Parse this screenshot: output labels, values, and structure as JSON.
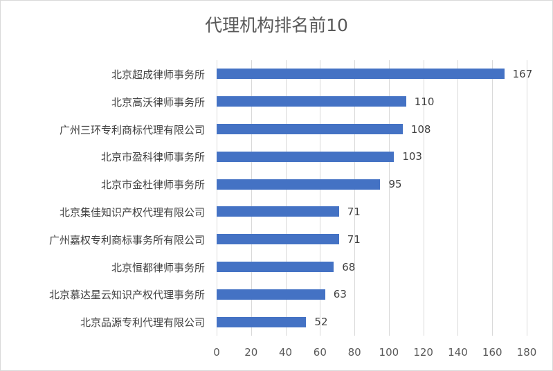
{
  "chart_data": {
    "type": "bar",
    "orientation": "horizontal",
    "title": "代理机构排名前10",
    "categories": [
      "北京超成律师事务所",
      "北京高沃律师事务所",
      "广州三环专利商标代理有限公司",
      "北京市盈科律师事务所",
      "北京市金杜律师事务所",
      "北京集佳知识产权代理有限公司",
      "广州嘉权专利商标事务所有限公司",
      "北京恒都律师事务所",
      "北京慕达星云知识产权代理事务所",
      "北京品源专利代理有限公司"
    ],
    "values": [
      167,
      110,
      108,
      103,
      95,
      71,
      71,
      68,
      63,
      52
    ],
    "xlabel": "",
    "ylabel": "",
    "xlim": [
      0,
      180
    ],
    "xticks": [
      "0",
      "20",
      "40",
      "60",
      "80",
      "100",
      "120",
      "140",
      "160",
      "180"
    ],
    "grid": true,
    "legend": "none",
    "bar_color": "#4472c4",
    "data_labels": true
  }
}
